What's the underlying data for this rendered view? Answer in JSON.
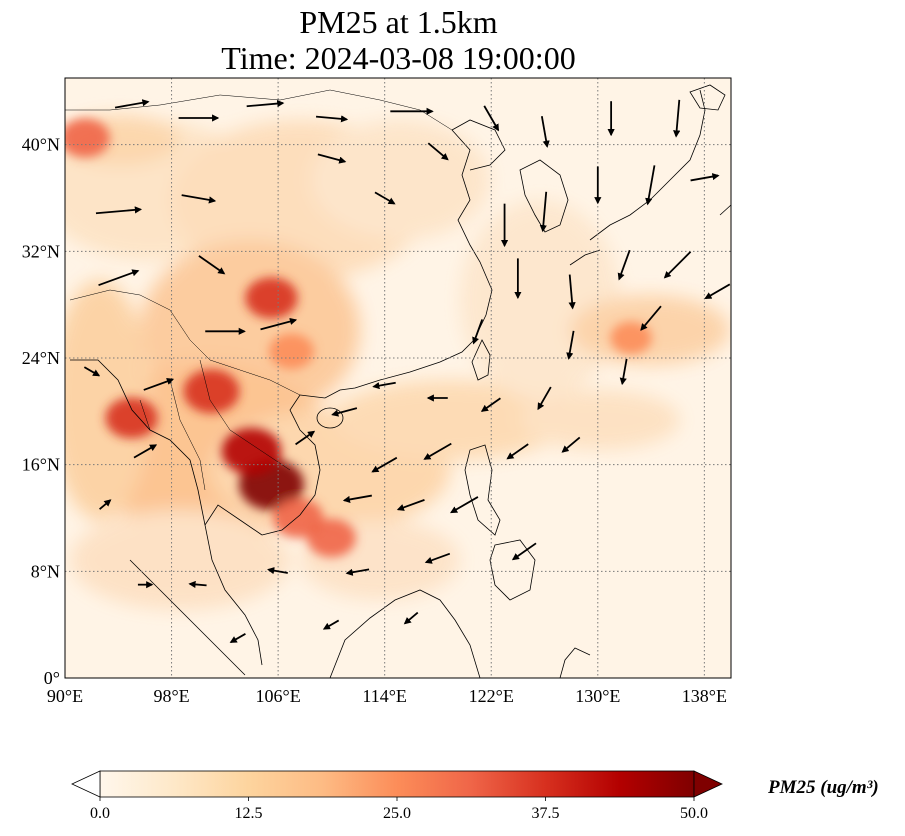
{
  "title": {
    "line1": "PM25 at 1.5km",
    "line2": "Time: 2024-03-08 19:00:00"
  },
  "map": {
    "projection": "PlateCarree",
    "extent": {
      "lon": [
        90,
        140
      ],
      "lat": [
        0,
        45
      ]
    },
    "gridlines": {
      "lons": [
        90,
        98,
        106,
        114,
        122,
        130,
        138
      ],
      "lats": [
        0,
        8,
        16,
        24,
        32,
        40
      ],
      "style": "dotted gray"
    },
    "lon_tick_labels": [
      "90°E",
      "98°E",
      "106°E",
      "114°E",
      "122°E",
      "130°E",
      "138°E"
    ],
    "lat_tick_labels": [
      "0°",
      "8°N",
      "16°N",
      "24°N",
      "32°N",
      "40°N"
    ],
    "field": {
      "variable": "PM25",
      "colormap": "OrRd",
      "hotspots": [
        {
          "lon": 105.5,
          "lat": 14.5,
          "value": 50
        },
        {
          "lon": 104.0,
          "lat": 17.0,
          "value": 44
        },
        {
          "lon": 101.0,
          "lat": 21.5,
          "value": 40
        },
        {
          "lon": 105.5,
          "lat": 28.5,
          "value": 36
        },
        {
          "lon": 95.0,
          "lat": 19.5,
          "value": 36
        },
        {
          "lon": 107.5,
          "lat": 12.0,
          "value": 34
        },
        {
          "lon": 110.0,
          "lat": 10.5,
          "value": 32
        },
        {
          "lon": 107.0,
          "lat": 24.5,
          "value": 28
        },
        {
          "lon": 91.5,
          "lat": 40.5,
          "value": 33
        },
        {
          "lon": 132.5,
          "lat": 25.5,
          "value": 24
        }
      ]
    },
    "wind_arrows": [
      {
        "lon": 95.0,
        "lat": 43.0,
        "dir_deg": 10,
        "speed": 1.2
      },
      {
        "lon": 100.0,
        "lat": 42.0,
        "dir_deg": 0,
        "speed": 1.4
      },
      {
        "lon": 105.0,
        "lat": 43.0,
        "dir_deg": 5,
        "speed": 1.3
      },
      {
        "lon": 110.0,
        "lat": 42.0,
        "dir_deg": -5,
        "speed": 1.1
      },
      {
        "lon": 116.0,
        "lat": 42.5,
        "dir_deg": 0,
        "speed": 1.5
      },
      {
        "lon": 94.0,
        "lat": 35.0,
        "dir_deg": 5,
        "speed": 1.6
      },
      {
        "lon": 100.0,
        "lat": 36.0,
        "dir_deg": -10,
        "speed": 1.2
      },
      {
        "lon": 94.0,
        "lat": 30.0,
        "dir_deg": 20,
        "speed": 1.5
      },
      {
        "lon": 101.0,
        "lat": 31.0,
        "dir_deg": -35,
        "speed": 1.1
      },
      {
        "lon": 102.0,
        "lat": 26.0,
        "dir_deg": 0,
        "speed": 1.4
      },
      {
        "lon": 106.0,
        "lat": 26.5,
        "dir_deg": 15,
        "speed": 1.3
      },
      {
        "lon": 97.0,
        "lat": 22.0,
        "dir_deg": 20,
        "speed": 1.1
      },
      {
        "lon": 96.0,
        "lat": 17.0,
        "dir_deg": 30,
        "speed": 0.9
      },
      {
        "lon": 110.0,
        "lat": 39.0,
        "dir_deg": -15,
        "speed": 1.0
      },
      {
        "lon": 114.0,
        "lat": 36.0,
        "dir_deg": -30,
        "speed": 0.8
      },
      {
        "lon": 118.0,
        "lat": 39.5,
        "dir_deg": -40,
        "speed": 0.9
      },
      {
        "lon": 122.0,
        "lat": 42.0,
        "dir_deg": -60,
        "speed": 1.0
      },
      {
        "lon": 126.0,
        "lat": 41.0,
        "dir_deg": -80,
        "speed": 1.1
      },
      {
        "lon": 131.0,
        "lat": 42.0,
        "dir_deg": -90,
        "speed": 1.2
      },
      {
        "lon": 136.0,
        "lat": 42.0,
        "dir_deg": -95,
        "speed": 1.3
      },
      {
        "lon": 123.0,
        "lat": 34.0,
        "dir_deg": -90,
        "speed": 1.5
      },
      {
        "lon": 126.0,
        "lat": 35.0,
        "dir_deg": -95,
        "speed": 1.4
      },
      {
        "lon": 130.0,
        "lat": 37.0,
        "dir_deg": -90,
        "speed": 1.3
      },
      {
        "lon": 134.0,
        "lat": 37.0,
        "dir_deg": -100,
        "speed": 1.4
      },
      {
        "lon": 138.0,
        "lat": 37.5,
        "dir_deg": 10,
        "speed": 1.0
      },
      {
        "lon": 124.0,
        "lat": 30.0,
        "dir_deg": -90,
        "speed": 1.4
      },
      {
        "lon": 128.0,
        "lat": 29.0,
        "dir_deg": -85,
        "speed": 1.2
      },
      {
        "lon": 132.0,
        "lat": 31.0,
        "dir_deg": -110,
        "speed": 1.1
      },
      {
        "lon": 136.0,
        "lat": 31.0,
        "dir_deg": -135,
        "speed": 1.3
      },
      {
        "lon": 139.0,
        "lat": 29.0,
        "dir_deg": -150,
        "speed": 1.0
      },
      {
        "lon": 134.0,
        "lat": 27.0,
        "dir_deg": -130,
        "speed": 1.1
      },
      {
        "lon": 128.0,
        "lat": 25.0,
        "dir_deg": -100,
        "speed": 1.0
      },
      {
        "lon": 132.0,
        "lat": 23.0,
        "dir_deg": -100,
        "speed": 0.9
      },
      {
        "lon": 121.0,
        "lat": 26.0,
        "dir_deg": -110,
        "speed": 0.9
      },
      {
        "lon": 126.0,
        "lat": 21.0,
        "dir_deg": -120,
        "speed": 0.9
      },
      {
        "lon": 122.0,
        "lat": 20.5,
        "dir_deg": -145,
        "speed": 0.8
      },
      {
        "lon": 118.0,
        "lat": 21.0,
        "dir_deg": 180,
        "speed": 0.7
      },
      {
        "lon": 114.0,
        "lat": 22.0,
        "dir_deg": -170,
        "speed": 0.8
      },
      {
        "lon": 111.0,
        "lat": 20.0,
        "dir_deg": -165,
        "speed": 0.9
      },
      {
        "lon": 118.0,
        "lat": 17.0,
        "dir_deg": -150,
        "speed": 1.1
      },
      {
        "lon": 114.0,
        "lat": 16.0,
        "dir_deg": -150,
        "speed": 1.0
      },
      {
        "lon": 124.0,
        "lat": 17.0,
        "dir_deg": -145,
        "speed": 0.9
      },
      {
        "lon": 128.0,
        "lat": 17.5,
        "dir_deg": -140,
        "speed": 0.8
      },
      {
        "lon": 120.0,
        "lat": 13.0,
        "dir_deg": -150,
        "speed": 1.1
      },
      {
        "lon": 116.0,
        "lat": 13.0,
        "dir_deg": -160,
        "speed": 1.0
      },
      {
        "lon": 112.0,
        "lat": 13.5,
        "dir_deg": -170,
        "speed": 1.0
      },
      {
        "lon": 124.5,
        "lat": 9.5,
        "dir_deg": -145,
        "speed": 1.0
      },
      {
        "lon": 118.0,
        "lat": 9.0,
        "dir_deg": -160,
        "speed": 0.9
      },
      {
        "lon": 112.0,
        "lat": 8.0,
        "dir_deg": -170,
        "speed": 0.8
      },
      {
        "lon": 106.0,
        "lat": 8.0,
        "dir_deg": 170,
        "speed": 0.7
      },
      {
        "lon": 100.0,
        "lat": 7.0,
        "dir_deg": 175,
        "speed": 0.6
      },
      {
        "lon": 96.0,
        "lat": 7.0,
        "dir_deg": 0,
        "speed": 0.5
      },
      {
        "lon": 103.0,
        "lat": 3.0,
        "dir_deg": -150,
        "speed": 0.6
      },
      {
        "lon": 110.0,
        "lat": 4.0,
        "dir_deg": -150,
        "speed": 0.6
      },
      {
        "lon": 116.0,
        "lat": 4.5,
        "dir_deg": -140,
        "speed": 0.6
      },
      {
        "lon": 92.0,
        "lat": 23.0,
        "dir_deg": -30,
        "speed": 0.6
      },
      {
        "lon": 93.0,
        "lat": 13.0,
        "dir_deg": 40,
        "speed": 0.5
      },
      {
        "lon": 108.0,
        "lat": 18.0,
        "dir_deg": 35,
        "speed": 0.8
      }
    ]
  },
  "colorbar": {
    "label": "PM25 (ug/m³)",
    "ticks": [
      0.0,
      12.5,
      25.0,
      37.5,
      50.0
    ],
    "tick_labels": [
      "0.0",
      "12.5",
      "25.0",
      "37.5",
      "50.0"
    ],
    "range": [
      0,
      50
    ],
    "extend": "both"
  }
}
